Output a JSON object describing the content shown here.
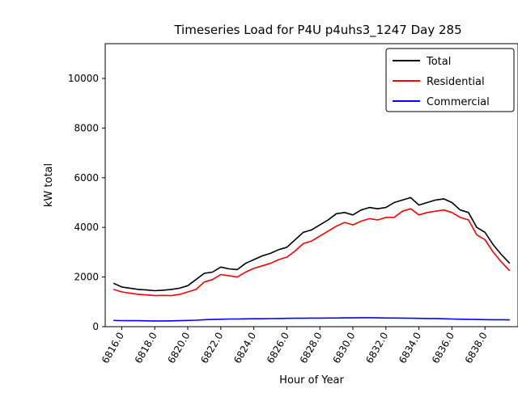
{
  "chart_data": {
    "type": "line",
    "title": "Timeseries Load for P4U p4uhs3_1247  Day 285",
    "xlabel": "Hour of Year",
    "ylabel": "kW total",
    "xlim": [
      6815,
      6840
    ],
    "ylim": [
      0,
      11400
    ],
    "grid": false,
    "legend_position": "upper right",
    "xticks": [
      6816,
      6818,
      6820,
      6822,
      6824,
      6826,
      6828,
      6830,
      6832,
      6834,
      6836,
      6838
    ],
    "xtick_labels": [
      "6816.0",
      "6818.0",
      "6820.0",
      "6822.0",
      "6824.0",
      "6826.0",
      "6828.0",
      "6830.0",
      "6832.0",
      "6834.0",
      "6836.0",
      "6838.0"
    ],
    "yticks": [
      0,
      2000,
      4000,
      6000,
      8000,
      10000
    ],
    "ytick_labels": [
      "0",
      "2000",
      "4000",
      "6000",
      "8000",
      "10000"
    ],
    "x": [
      6815.5,
      6816.0,
      6816.5,
      6817.0,
      6817.5,
      6818.0,
      6818.5,
      6819.0,
      6819.5,
      6820.0,
      6820.5,
      6821.0,
      6821.5,
      6822.0,
      6822.5,
      6823.0,
      6823.5,
      6824.0,
      6824.5,
      6825.0,
      6825.5,
      6826.0,
      6826.5,
      6827.0,
      6827.5,
      6828.0,
      6828.5,
      6829.0,
      6829.5,
      6830.0,
      6830.5,
      6831.0,
      6831.5,
      6832.0,
      6832.5,
      6833.0,
      6833.5,
      6834.0,
      6834.5,
      6835.0,
      6835.5,
      6836.0,
      6836.5,
      6837.0,
      6837.5,
      6838.0,
      6838.5,
      6839.0,
      6839.5
    ],
    "series": [
      {
        "name": "Total",
        "color": "#000000",
        "values": [
          1750,
          1600,
          1550,
          1500,
          1480,
          1450,
          1470,
          1500,
          1550,
          1650,
          1900,
          2150,
          2200,
          2400,
          2330,
          2300,
          2550,
          2700,
          2850,
          2950,
          3100,
          3200,
          3500,
          3800,
          3900,
          4100,
          4300,
          4550,
          4600,
          4500,
          4700,
          4800,
          4750,
          4800,
          5000,
          5100,
          5200,
          4900,
          5000,
          5100,
          5150,
          5000,
          4700,
          4600,
          4000,
          3800,
          3300,
          2900,
          2550
        ]
      },
      {
        "name": "Residential",
        "color": "#ff0000",
        "values": [
          1500,
          1400,
          1350,
          1300,
          1280,
          1250,
          1260,
          1250,
          1300,
          1400,
          1500,
          1800,
          1900,
          2100,
          2050,
          2000,
          2200,
          2350,
          2450,
          2550,
          2700,
          2800,
          3050,
          3350,
          3450,
          3650,
          3850,
          4050,
          4200,
          4100,
          4250,
          4350,
          4300,
          4400,
          4400,
          4650,
          4750,
          4500,
          4600,
          4650,
          4700,
          4600,
          4400,
          4300,
          3700,
          3500,
          3000,
          2600,
          2250
        ]
      },
      {
        "name": "Commercial",
        "color": "#0000ff",
        "values": [
          250,
          245,
          240,
          240,
          235,
          230,
          230,
          235,
          240,
          250,
          260,
          280,
          290,
          300,
          310,
          310,
          315,
          320,
          320,
          325,
          330,
          335,
          340,
          340,
          345,
          345,
          350,
          350,
          355,
          355,
          360,
          360,
          355,
          350,
          350,
          345,
          340,
          335,
          330,
          330,
          320,
          310,
          300,
          295,
          290,
          285,
          280,
          280,
          275
        ]
      }
    ]
  }
}
